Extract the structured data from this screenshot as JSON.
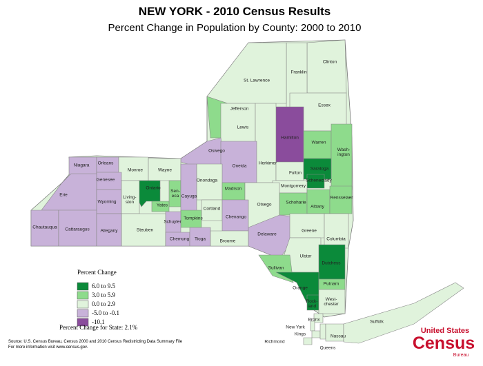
{
  "title": "NEW YORK - 2010 Census Results",
  "subtitle": "Percent Change in Population by County:  2000 to 2010",
  "legend": {
    "title": "Percent Change",
    "items": [
      {
        "label": "6.0 to 9.5",
        "color": "#0b8a3a"
      },
      {
        "label": "3.0 to 5.9",
        "color": "#8edb8c"
      },
      {
        "label": "0.0 to 2.9",
        "color": "#e0f3dc"
      },
      {
        "label": "-5.0 to -0.1",
        "color": "#c8b2d9"
      },
      {
        "label": "-10.1",
        "color": "#8a4c9c"
      }
    ]
  },
  "state_change": "Percent Change for State:  2.1%",
  "counties": [
    {
      "name": "Clinton",
      "class": 2
    },
    {
      "name": "Franklin",
      "class": 2
    },
    {
      "name": "St. Lawrence",
      "class": 2
    },
    {
      "name": "Essex",
      "class": 2
    },
    {
      "name": "Jefferson",
      "class": 1
    },
    {
      "name": "Lewis",
      "class": 2
    },
    {
      "name": "Hamilton",
      "class": 4
    },
    {
      "name": "Warren",
      "class": 1
    },
    {
      "name": "Wash-\nington",
      "class": 1
    },
    {
      "name": "Herkimer",
      "class": 2
    },
    {
      "name": "Oswego",
      "class": 3
    },
    {
      "name": "Oneida",
      "class": 3
    },
    {
      "name": "Fulton",
      "class": 2
    },
    {
      "name": "Saratoga",
      "class": 0
    },
    {
      "name": "Schenectady",
      "class": 0
    },
    {
      "name": "Montgomery",
      "class": 2
    },
    {
      "name": "Niagara",
      "class": 3
    },
    {
      "name": "Orleans",
      "class": 3
    },
    {
      "name": "Monroe",
      "class": 2
    },
    {
      "name": "Wayne",
      "class": 2
    },
    {
      "name": "Genesee",
      "class": 3
    },
    {
      "name": "Onondaga",
      "class": 2
    },
    {
      "name": "Madison",
      "class": 1
    },
    {
      "name": "Sen-\neca",
      "class": 1
    },
    {
      "name": "Ontario",
      "class": 0
    },
    {
      "name": "Cayuga",
      "class": 3
    },
    {
      "name": "Erie",
      "class": 3
    },
    {
      "name": "Wyoming",
      "class": 3
    },
    {
      "name": "Living-\nston",
      "class": 2
    },
    {
      "name": "Yates",
      "class": 1
    },
    {
      "name": "Schoharie",
      "class": 1
    },
    {
      "name": "Albany",
      "class": 1
    },
    {
      "name": "Rensselaer",
      "class": 1
    },
    {
      "name": "Otsego",
      "class": 2
    },
    {
      "name": "Cortland",
      "class": 2
    },
    {
      "name": "Chenango",
      "class": 3
    },
    {
      "name": "Tompkins",
      "class": 1
    },
    {
      "name": "Schuyler",
      "class": 3
    },
    {
      "name": "Steuben",
      "class": 2
    },
    {
      "name": "Chautauqua",
      "class": 3
    },
    {
      "name": "Cattaraugus",
      "class": 3
    },
    {
      "name": "Allegany",
      "class": 3
    },
    {
      "name": "Chemung",
      "class": 3
    },
    {
      "name": "Tioga",
      "class": 3
    },
    {
      "name": "Broome",
      "class": 2
    },
    {
      "name": "Delaware",
      "class": 3
    },
    {
      "name": "Greene",
      "class": 2
    },
    {
      "name": "Columbia",
      "class": 2
    },
    {
      "name": "Ulster",
      "class": 2
    },
    {
      "name": "Dutchess",
      "class": 0
    },
    {
      "name": "Sullivan",
      "class": 1
    },
    {
      "name": "Orange",
      "class": 0
    },
    {
      "name": "Putnam",
      "class": 1
    },
    {
      "name": "Rock-\nland",
      "class": 0
    },
    {
      "name": "West-\nchester",
      "class": 2
    },
    {
      "name": "Bronx",
      "class": 2
    },
    {
      "name": "New York",
      "class": 2
    },
    {
      "name": "Kings",
      "class": 2
    },
    {
      "name": "Queens",
      "class": 2
    },
    {
      "name": "Richmond",
      "class": 2
    },
    {
      "name": "Nassau",
      "class": 2
    },
    {
      "name": "Suffolk",
      "class": 2
    }
  ],
  "source": [
    "Source:  U.S. Census Bureau, Census 2000 and 2010 Census Redistricting Data Summary File",
    "For more information visit www.census.gov."
  ],
  "logo": {
    "top": "United States",
    "main": "Census",
    "bottom": "Bureau"
  }
}
